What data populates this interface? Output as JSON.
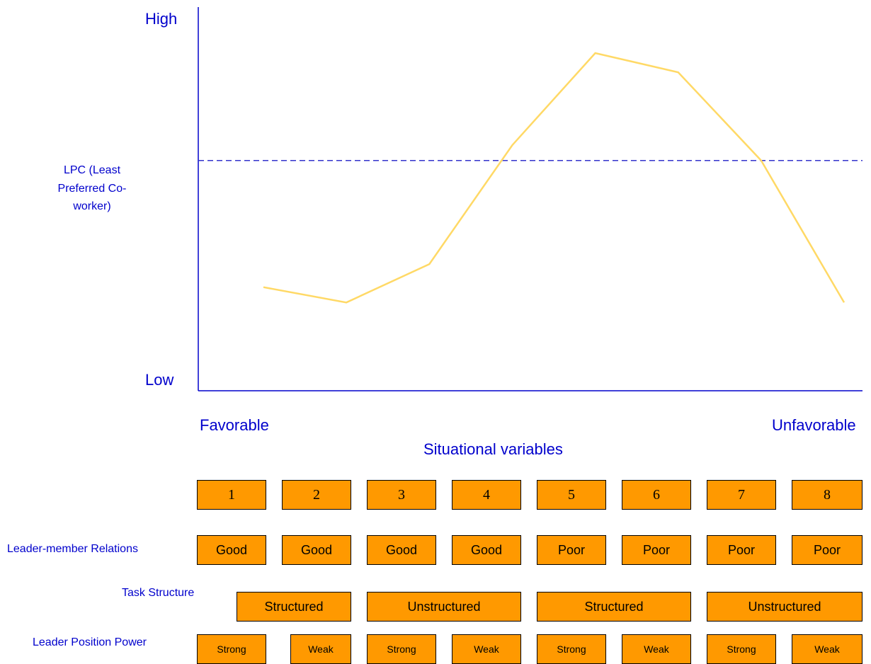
{
  "y_axis": {
    "high_label": "High",
    "low_label": "Low",
    "title": "LPC (Least Preferred Co-worker)"
  },
  "x_axis": {
    "left_label": "Favorable",
    "right_label": "Unfavorable",
    "title": "Situational variables"
  },
  "rows": {
    "relations_label": "Leader-member Relations",
    "task_label": "Task Structure",
    "power_label": "Leader Position  Power"
  },
  "situations": [
    "1",
    "2",
    "3",
    "4",
    "5",
    "6",
    "7",
    "8"
  ],
  "relations": [
    "Good",
    "Good",
    "Good",
    "Good",
    "Poor",
    "Poor",
    "Poor",
    "Poor"
  ],
  "task_structure": [
    "Structured",
    "Unstructured",
    "Structured",
    "Unstructured"
  ],
  "position_power": [
    "Strong",
    "Weak",
    "Strong",
    "Weak",
    "Strong",
    "Weak",
    "Strong",
    "Weak"
  ],
  "colors": {
    "axis": "#0000cc",
    "curve": "#ffd966",
    "reference_line": "#3333cc",
    "box_fill": "#ff9900",
    "box_border": "#000000"
  },
  "chart_data": {
    "type": "line",
    "x": [
      1,
      2,
      3,
      4,
      5,
      6,
      7,
      8
    ],
    "y": [
      0.27,
      0.23,
      0.33,
      0.64,
      0.88,
      0.83,
      0.6,
      0.23
    ],
    "reference_line": 0.6,
    "ylim": [
      0,
      1
    ],
    "grid": false,
    "legend": "none"
  }
}
